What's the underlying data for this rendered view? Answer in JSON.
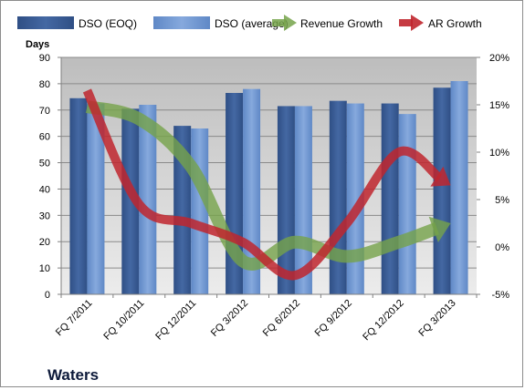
{
  "chart_data": {
    "type": "bar",
    "company": "Waters",
    "categories": [
      "FQ 7/2011",
      "FQ 10/2011",
      "FQ 12/2011",
      "FQ 3/2012",
      "FQ 6/2012",
      "FQ 9/2012",
      "FQ 12/2012",
      "FQ 3/2013"
    ],
    "ylabel": "Days",
    "ylim": [
      0,
      90
    ],
    "y_ticks": [
      "0",
      "10",
      "20",
      "30",
      "40",
      "50",
      "60",
      "70",
      "80",
      "90"
    ],
    "y2lim": [
      -5,
      20
    ],
    "y2_ticks": [
      "-5%",
      "0%",
      "5%",
      "10%",
      "15%",
      "20%"
    ],
    "series": [
      {
        "name": "DSO (EOQ)",
        "kind": "bar",
        "axis": "left",
        "color": "#3d5f97",
        "values": [
          74.5,
          70.5,
          64,
          76.5,
          71.5,
          73.5,
          72.5,
          78.5
        ]
      },
      {
        "name": "DSO (average)",
        "kind": "bar",
        "axis": "left",
        "color": "#7097d1",
        "values": [
          72.5,
          72,
          63,
          78,
          71.5,
          72.5,
          68.5,
          81
        ]
      },
      {
        "name": "Revenue Growth",
        "kind": "line",
        "axis": "right",
        "color": "#76a34a",
        "values": [
          14.8,
          13.5,
          8.5,
          -1.5,
          0.5,
          -1,
          0.5,
          2.5
        ]
      },
      {
        "name": "AR Growth",
        "kind": "line",
        "axis": "right",
        "color": "#c0262e",
        "values": [
          16.5,
          4.5,
          2.5,
          0.5,
          -3,
          2.5,
          10,
          6.5
        ]
      }
    ],
    "legend_position": "top",
    "plot_background": "#c8c8c8",
    "grid": true
  }
}
